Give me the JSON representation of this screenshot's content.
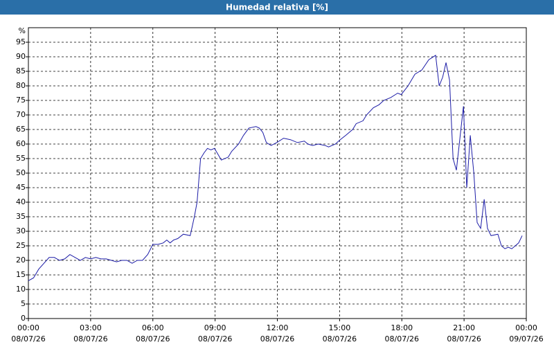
{
  "chart_data": {
    "type": "line",
    "title": "Humedad relativa [%]",
    "y_unit": "%",
    "x": [
      0,
      0.25,
      0.5,
      0.75,
      1.0,
      1.25,
      1.5,
      1.75,
      2.0,
      2.25,
      2.5,
      2.75,
      3.0,
      3.25,
      3.5,
      3.75,
      4.0,
      4.25,
      4.5,
      4.75,
      5.0,
      5.25,
      5.5,
      5.75,
      6.0,
      6.25,
      6.5,
      6.67,
      6.83,
      7.0,
      7.2,
      7.47,
      7.8,
      8.0,
      8.13,
      8.3,
      8.47,
      8.63,
      8.8,
      8.97,
      9.3,
      9.63,
      9.8,
      10.13,
      10.37,
      10.63,
      10.97,
      11.13,
      11.3,
      11.47,
      11.7,
      11.97,
      12.3,
      12.63,
      12.97,
      13.3,
      13.47,
      13.7,
      13.97,
      14.3,
      14.47,
      14.8,
      15.03,
      15.3,
      15.63,
      15.8,
      16.13,
      16.3,
      16.63,
      16.9,
      17.13,
      17.47,
      17.8,
      17.97,
      18.3,
      18.63,
      18.97,
      19.3,
      19.63,
      19.8,
      19.97,
      20.13,
      20.3,
      20.47,
      20.63,
      20.8,
      20.97,
      21.13,
      21.3,
      21.47,
      21.63,
      21.8,
      21.97,
      22.13,
      22.3,
      22.63,
      22.8,
      22.97,
      23.13,
      23.3,
      23.47,
      23.63,
      23.8
    ],
    "series": [
      {
        "name": "Humedad relativa",
        "color": "#1a1aa6",
        "values": [
          13,
          14,
          17,
          19,
          21,
          21,
          20,
          20.5,
          22,
          21,
          20,
          21,
          20.5,
          21,
          20.5,
          20.5,
          20,
          19.5,
          20,
          20,
          19,
          20,
          20,
          22,
          25.5,
          25.5,
          26,
          27,
          26,
          27,
          27.5,
          29,
          28.5,
          35,
          40,
          55,
          57,
          58.5,
          58,
          58.5,
          54.5,
          55.5,
          57.5,
          60,
          63,
          65.5,
          66,
          65.5,
          64,
          60.5,
          59.5,
          60.5,
          62,
          61.5,
          60.5,
          61,
          60,
          59.5,
          60,
          59.5,
          59,
          60,
          61.5,
          63,
          65,
          67,
          68,
          70,
          72.5,
          73.5,
          75,
          76,
          77.5,
          77,
          80,
          84,
          85.5,
          89,
          90.5,
          80,
          83,
          88,
          82,
          55,
          51,
          62,
          73,
          45,
          63,
          50,
          33,
          31,
          41,
          31,
          28.5,
          29,
          25,
          24,
          24.5,
          24,
          25,
          26,
          28.5
        ]
      }
    ],
    "xlim": [
      0,
      24
    ],
    "xticks": [
      {
        "value": 0,
        "label": "00:00"
      },
      {
        "value": 3,
        "label": "03:00"
      },
      {
        "value": 6,
        "label": "06:00"
      },
      {
        "value": 9,
        "label": "09:00"
      },
      {
        "value": 12,
        "label": "12:00"
      },
      {
        "value": 15,
        "label": "15:00"
      },
      {
        "value": 18,
        "label": "18:00"
      },
      {
        "value": 21,
        "label": "21:00"
      },
      {
        "value": 24,
        "label": "00:00"
      }
    ],
    "xtick_dates": [
      "08/07/26",
      "08/07/26",
      "08/07/26",
      "08/07/26",
      "08/07/26",
      "08/07/26",
      "08/07/26",
      "08/07/26",
      "09/07/26"
    ],
    "ylim": [
      0,
      100
    ],
    "yticks": [
      0,
      5,
      10,
      15,
      20,
      25,
      30,
      35,
      40,
      45,
      50,
      55,
      60,
      65,
      70,
      75,
      80,
      85,
      90,
      95
    ],
    "grid": true
  }
}
